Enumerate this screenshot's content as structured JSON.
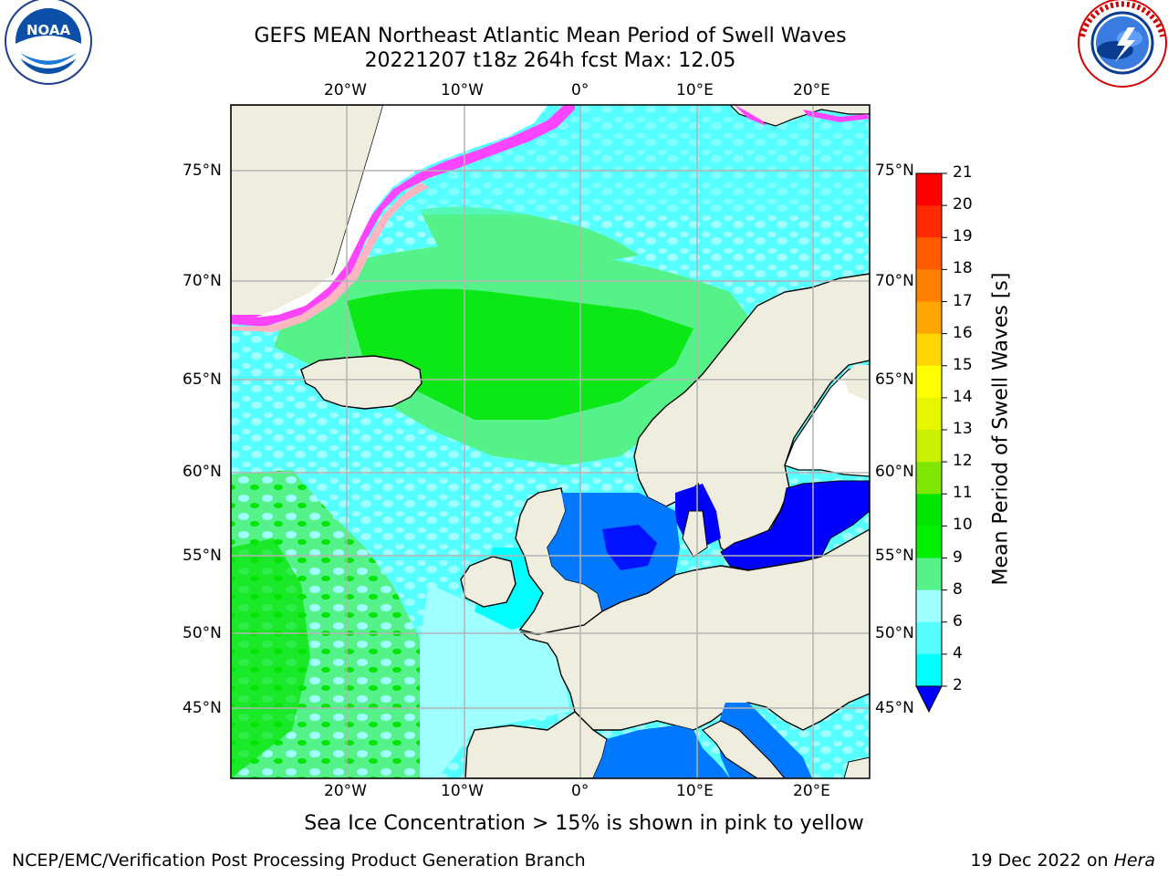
{
  "title": {
    "line1": "GEFS MEAN Northeast Atlantic Mean Period of Swell Waves",
    "line2": "20221207 t18z 264h fcst   Max: 12.05"
  },
  "logos": {
    "noara": {
      "text": "NOAA",
      "ring_text": "NATIONAL OCEANIC AND ATMOSPHERIC ADMINISTRATION • U.S. DEPARTMENT OF COMMERCE"
    },
    "nws": {
      "ring_text": "NATIONAL WEATHER SERVICE"
    }
  },
  "map": {
    "lon_labels": [
      "20°W",
      "10°W",
      "0°",
      "10°E",
      "20°E"
    ],
    "lat_labels": [
      "75°N",
      "70°N",
      "65°N",
      "60°N",
      "55°N",
      "50°N",
      "45°N"
    ]
  },
  "colorbar": {
    "title": "Mean Period of Swell Waves [s]",
    "ticks": [
      "21",
      "20",
      "19",
      "18",
      "17",
      "16",
      "15",
      "14",
      "13",
      "12",
      "11",
      "10",
      "9",
      "8",
      "6",
      "4",
      "2"
    ],
    "colors": [
      "#ff0000",
      "#ff2a00",
      "#ff5a00",
      "#ff7f00",
      "#ffa500",
      "#ffd400",
      "#ffff00",
      "#e8f500",
      "#c8f000",
      "#80e800",
      "#00e600",
      "#00f000",
      "#55f28a",
      "#a0ffff",
      "#55ffff",
      "#00ffff",
      "#0078ff"
    ],
    "extend_color": "#0000ff"
  },
  "caption": "Sea Ice Concentration > 15% is shown in pink to yellow",
  "footer": {
    "left": "NCEP/EMC/Verification Post Processing Product Generation Branch",
    "date": "19 Dec 2022 on",
    "host": "Hera"
  }
}
